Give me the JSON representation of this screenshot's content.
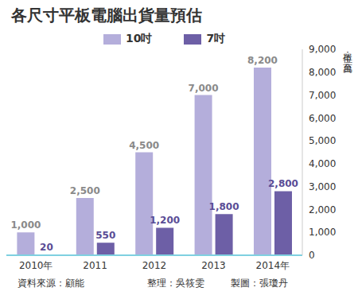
{
  "chart_data": {
    "type": "bar",
    "title": "各尺寸平板電腦出貨量預估",
    "ylabel": "單位：萬台",
    "categories": [
      "2010年",
      "2011",
      "2012",
      "2013",
      "2014年"
    ],
    "series": [
      {
        "name": "10吋",
        "color": "#b4aedb",
        "values": [
          1000,
          2500,
          4500,
          7000,
          8200
        ],
        "value_labels": [
          "1,000",
          "2,500",
          "4,500",
          "7,000",
          "8,200"
        ]
      },
      {
        "name": "7吋",
        "color": "#6d5fa6",
        "values": [
          20,
          550,
          1200,
          1800,
          2800
        ],
        "value_labels": [
          "20",
          "550",
          "1,200",
          "1,800",
          "2,800"
        ]
      }
    ],
    "ylim": [
      0,
      9000
    ],
    "yticks": [
      0,
      {
        "value": 1000,
        "label": "1,000"
      },
      {
        "value": 2000,
        "label": "2,000"
      },
      {
        "value": 3000,
        "label": "3,000"
      },
      {
        "value": 4000,
        "label": "4,000"
      },
      {
        "value": 5000,
        "label": "5,000"
      },
      {
        "value": 6000,
        "label": "6,000"
      },
      {
        "value": 7000,
        "label": "7,000"
      },
      {
        "value": 8000,
        "label": "8,000"
      },
      {
        "value": 9000,
        "label": "9,000"
      }
    ],
    "grid": false,
    "legend": "top",
    "data_labels": true,
    "annotations": [
      "資料來源：顧能",
      "整理：吳筱雯",
      "製圖：張瓊丹"
    ]
  }
}
